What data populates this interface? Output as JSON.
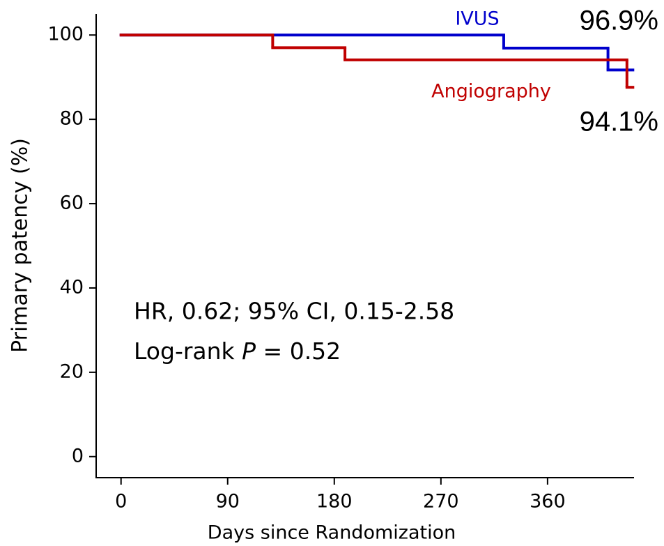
{
  "chart_data": {
    "type": "step",
    "xlabel": "Days since Randomization",
    "ylabel": "Primary patency (%)",
    "xlim": [
      -21,
      433
    ],
    "ylim": [
      -5,
      105
    ],
    "xticks": [
      0,
      90,
      180,
      270,
      360
    ],
    "yticks": [
      0,
      20,
      40,
      60,
      80,
      100
    ],
    "series": [
      {
        "name": "IVUS",
        "color": "#0000cc",
        "x": [
          0,
          323,
          411,
          432
        ],
        "values": [
          100,
          96.9,
          91.7,
          91.7
        ]
      },
      {
        "name": "Angiography",
        "color": "#c00000",
        "x": [
          0,
          128,
          189,
          427,
          432
        ],
        "values": [
          100,
          97.0,
          94.1,
          87.6,
          87.6
        ]
      }
    ],
    "annotations": {
      "ivus_rate": "96.9%",
      "angio_rate": "94.1%",
      "hr": "HR, 0.62; 95% CI, 0.15-2.58",
      "logrank": [
        "Log-rank ",
        "P",
        " = 0.52"
      ]
    }
  }
}
